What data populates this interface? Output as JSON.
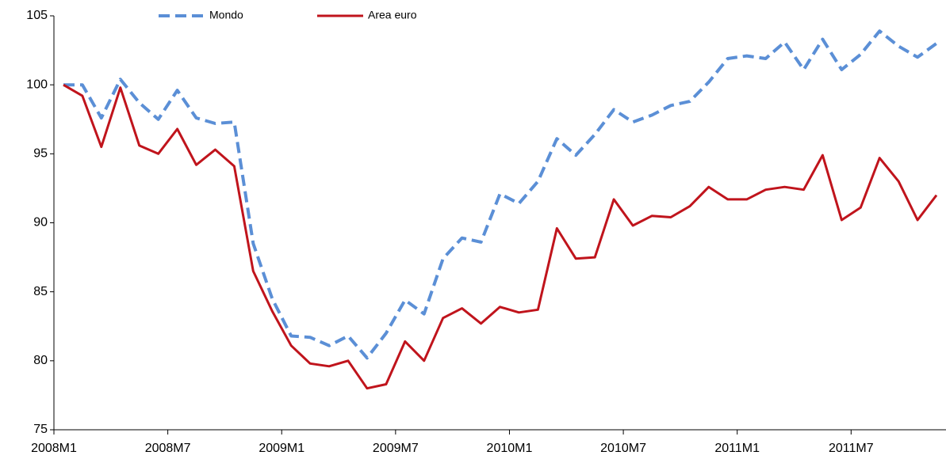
{
  "chart_data": {
    "type": "line",
    "categories": [
      "2008M1",
      null,
      null,
      null,
      null,
      null,
      "2008M7",
      null,
      null,
      null,
      null,
      null,
      "2009M1",
      null,
      null,
      null,
      null,
      null,
      "2009M7",
      null,
      null,
      null,
      null,
      null,
      "2010M1",
      null,
      null,
      null,
      null,
      null,
      "2010M7",
      null,
      null,
      null,
      null,
      null,
      "2011M1",
      null,
      null,
      null,
      null,
      null,
      "2011M7",
      null,
      null,
      null,
      null
    ],
    "series": [
      {
        "name": "Mondo",
        "color": "#5b8fd6",
        "dashed": true,
        "values": [
          100,
          100,
          97.6,
          100.4,
          98.7,
          97.5,
          99.6,
          97.6,
          97.2,
          97.3,
          88.5,
          84.5,
          81.8,
          81.7,
          81.1,
          81.8,
          80.2,
          82,
          84.4,
          83.4,
          87.4,
          88.9,
          88.6,
          92.1,
          91.4,
          93,
          96.1,
          94.9,
          96.4,
          98.2,
          97.3,
          97.8,
          98.5,
          98.8,
          100.2,
          101.9,
          102.1,
          101.9,
          103.1,
          101.1,
          103.3,
          101.1,
          102.2,
          103.9,
          102.8,
          102,
          103
        ]
      },
      {
        "name": "Area euro",
        "color": "#c0141c",
        "dashed": false,
        "values": [
          100,
          99.2,
          95.5,
          99.8,
          95.6,
          95,
          96.8,
          94.2,
          95.3,
          94.1,
          86.5,
          83.6,
          81.1,
          79.8,
          79.6,
          80,
          78,
          78.3,
          81.4,
          80,
          83.1,
          83.8,
          82.7,
          83.9,
          83.5,
          83.7,
          89.6,
          87.4,
          87.5,
          91.7,
          89.8,
          90.5,
          90.4,
          91.2,
          92.6,
          91.7,
          91.7,
          92.4,
          92.6,
          92.4,
          94.9,
          90.2,
          91.1,
          94.7,
          93,
          90.2,
          92
        ]
      }
    ],
    "ylim": [
      75,
      105
    ],
    "yticks": [
      75,
      80,
      85,
      90,
      95,
      100,
      105
    ],
    "grid": false,
    "legend": "top"
  }
}
